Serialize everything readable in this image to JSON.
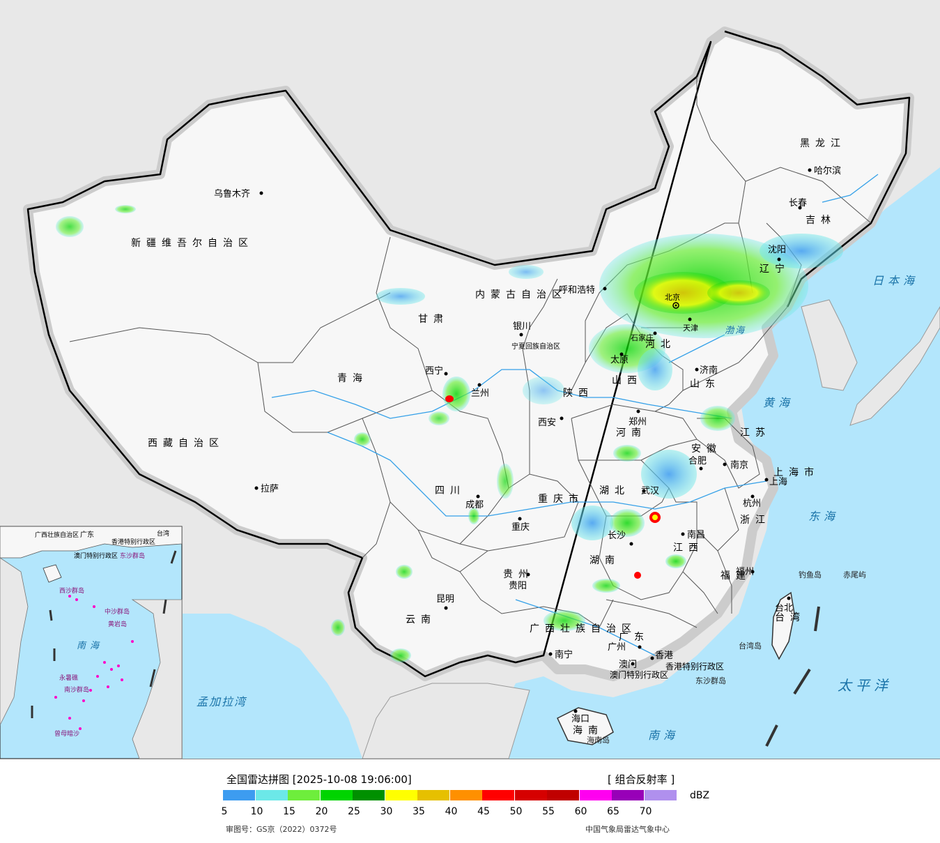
{
  "header": {
    "title": "全国雷达拼图 [2025-10-08 19:06:00]",
    "product": "[ 组合反射率 ]",
    "unit": "dBZ",
    "approval": "审图号：GS京（2022）0372号",
    "issuer": "中国气象局雷达气象中心"
  },
  "legend": {
    "colors": [
      "#3d9cf0",
      "#6ce8e8",
      "#6eee3c",
      "#00d400",
      "#009000",
      "#ffff00",
      "#e6c000",
      "#ff9000",
      "#ff0000",
      "#d60000",
      "#c00000",
      "#ff00f0",
      "#9800b8",
      "#b090ee"
    ],
    "ticks": [
      "5",
      "10",
      "15",
      "20",
      "25",
      "30",
      "35",
      "40",
      "45",
      "50",
      "55",
      "60",
      "65",
      "70"
    ]
  },
  "map": {
    "provinces": [
      "新疆维吾尔自治区",
      "西藏自治区",
      "青海",
      "甘肃",
      "内蒙古自治区",
      "黑龙江",
      "吉林",
      "辽宁",
      "河北",
      "山西",
      "山东",
      "陕西",
      "四川",
      "云南",
      "贵州",
      "重庆市",
      "湖北",
      "湖南",
      "河南",
      "安徽",
      "江苏",
      "浙江",
      "江西",
      "福建",
      "广东",
      "广西壮族自治区",
      "海南",
      "台湾",
      "上海市",
      "宁夏回族自治区",
      "香港特别行政区",
      "澳门特别行政区"
    ],
    "cities": [
      "乌鲁木齐",
      "拉萨",
      "西宁",
      "兰州",
      "银川",
      "呼和浩特",
      "哈尔滨",
      "长春",
      "沈阳",
      "北京",
      "天津",
      "石家庄",
      "太原",
      "济南",
      "郑州",
      "西安",
      "成都",
      "重庆",
      "武汉",
      "合肥",
      "南京",
      "上海",
      "杭州",
      "南昌",
      "长沙",
      "福州",
      "台北",
      "贵阳",
      "昆明",
      "南宁",
      "广州",
      "香港",
      "澳门",
      "海口"
    ],
    "seas": [
      "日本海",
      "黄海",
      "东海",
      "太平洋",
      "南海",
      "孟加拉湾",
      "渤海"
    ],
    "islands": [
      "钓鱼岛",
      "赤尾屿",
      "台湾岛",
      "东沙群岛",
      "海南岛",
      "西沙群岛",
      "中沙群岛",
      "南沙群岛",
      "黄岩岛",
      "永暑礁",
      "曾母暗沙"
    ]
  }
}
